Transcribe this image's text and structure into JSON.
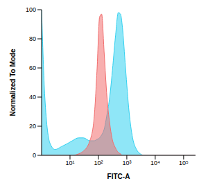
{
  "chart_data": {
    "type": "area",
    "x_label": "FITC-A",
    "y_label": "Normalized To Mode",
    "log": "x",
    "xlim": [
      1,
      262144
    ],
    "xticks": [
      {
        "value": 10,
        "label": "10¹"
      },
      {
        "value": 100,
        "label": "10²"
      },
      {
        "value": 1000,
        "label": "10³"
      },
      {
        "value": 10000,
        "label": "10⁴"
      },
      {
        "value": 100000,
        "label": "10⁵"
      }
    ],
    "ylim": [
      0,
      100
    ],
    "yticks": [
      0,
      20,
      40,
      60,
      80,
      100
    ],
    "x": [
      1,
      1.3,
      2,
      3,
      5,
      8,
      12,
      20,
      30,
      50,
      70,
      90,
      110,
      130,
      160,
      200,
      250,
      300,
      400,
      500,
      600,
      700,
      900,
      1200,
      1600,
      2200,
      3000,
      4000,
      262144
    ],
    "series": [
      {
        "color": "#33d1f0",
        "values": [
          100,
          40,
          8,
          4,
          6,
          8,
          10,
          12,
          12,
          10,
          10,
          11,
          12,
          14,
          18,
          28,
          40,
          55,
          82,
          98,
          97,
          88,
          60,
          30,
          12,
          4,
          1,
          0,
          0
        ]
      },
      {
        "color": "#f26d6d",
        "values": [
          0,
          0,
          0,
          0,
          0,
          0,
          0,
          1,
          3,
          10,
          25,
          60,
          95,
          97,
          70,
          40,
          22,
          12,
          5,
          2,
          1,
          0,
          0,
          0,
          0,
          0,
          0,
          0,
          0
        ]
      }
    ]
  }
}
